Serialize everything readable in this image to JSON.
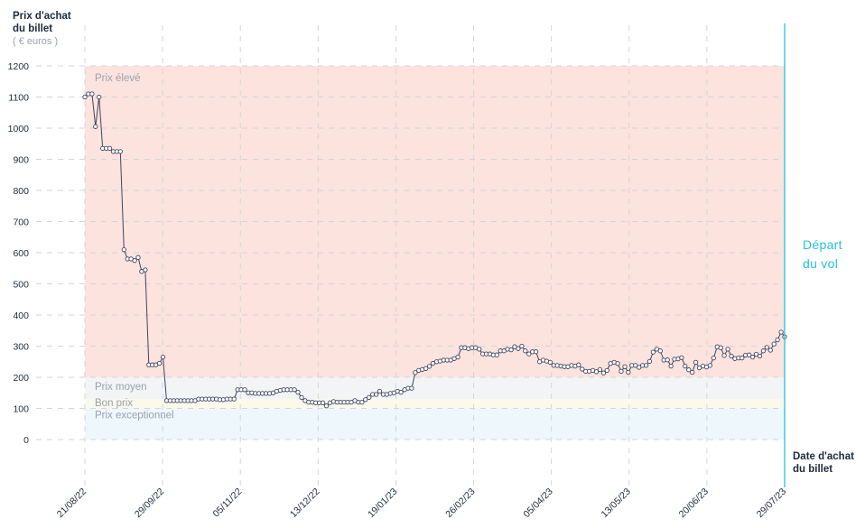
{
  "axis": {
    "y_title_line1": "Prix d'achat",
    "y_title_line2": "du billet",
    "y_unit": "( € euros )",
    "x_title_line1": "Date d'achat",
    "x_title_line2": "du billet"
  },
  "departure_label_line1": "Départ",
  "departure_label_line2": "du vol",
  "colors": {
    "line": "#3d4660",
    "high_zone": "#fde3dd",
    "mid_zone": "#f3f4f5",
    "good_zone": "#fbf8ec",
    "exceptional_zone": "#eef7fb",
    "departure_line": "#22c3de",
    "grid": "#d3d6da",
    "tick_text": "#1d2a3a",
    "zone_text": "#9aa2ad"
  },
  "chart_data": {
    "type": "line",
    "title": "",
    "xlabel": "Date d'achat du billet",
    "ylabel": "Prix d'achat du billet ( € euros )",
    "ylim": [
      0,
      1200
    ],
    "yticks": [
      0,
      100,
      200,
      300,
      400,
      500,
      600,
      700,
      800,
      900,
      1000,
      1100,
      1200
    ],
    "xlim": [
      "21/08/22",
      "29/07/23"
    ],
    "xticks": [
      "21/08/22",
      "29/09/22",
      "05/11/22",
      "13/12/22",
      "19/01/23",
      "26/02/23",
      "05/04/23",
      "13/05/23",
      "20/06/23",
      "29/07/23"
    ],
    "grid": true,
    "zones": [
      {
        "name": "Prix élevé",
        "from": 200,
        "to": 1200
      },
      {
        "name": "Prix moyen",
        "from": 130,
        "to": 200
      },
      {
        "name": "Bon prix",
        "from": 100,
        "to": 130
      },
      {
        "name": "Prix exceptionnel",
        "from": 0,
        "to": 100
      }
    ],
    "departure_marker": {
      "date": "29/07/23",
      "label": "Départ du vol"
    },
    "series": [
      {
        "day_start": "21/08/22",
        "values": [
          1100,
          1110,
          1110,
          1005,
          1100,
          935,
          935,
          935,
          925,
          925,
          925,
          610,
          580,
          580,
          575,
          585,
          540,
          545,
          240,
          240,
          240,
          245,
          265,
          125,
          125,
          125,
          125,
          125,
          125,
          125,
          125,
          125,
          130,
          130,
          130,
          130,
          130,
          130,
          128,
          128,
          130,
          130,
          130,
          160,
          160,
          160,
          150,
          150,
          148,
          148,
          148,
          148,
          148,
          150,
          155,
          158,
          160,
          160,
          160,
          160,
          152,
          135,
          125,
          120,
          120,
          118,
          118,
          118,
          108,
          118,
          122,
          120,
          120,
          120,
          120,
          120,
          125,
          120,
          120,
          128,
          135,
          145,
          145,
          155,
          145,
          145,
          148,
          150,
          155,
          152,
          160,
          165,
          165,
          215,
          222,
          225,
          228,
          235,
          245,
          250,
          252,
          255,
          255,
          255,
          260,
          265,
          295,
          295,
          292,
          295,
          295,
          290,
          275,
          275,
          275,
          272,
          272,
          285,
          285,
          290,
          288,
          298,
          292,
          300,
          285,
          275,
          282,
          282,
          250,
          255,
          252,
          248,
          238,
          238,
          236,
          234,
          234,
          238,
          236,
          240,
          226,
          219,
          219,
          222,
          218,
          225,
          214,
          222,
          244,
          248,
          244,
          219,
          234,
          216,
          238,
          238,
          232,
          238,
          238,
          251,
          281,
          290,
          285,
          255,
          256,
          236,
          258,
          259,
          263,
          236,
          224,
          216,
          248,
          230,
          236,
          233,
          238,
          262,
          298,
          295,
          270,
          290,
          268,
          260,
          262,
          262,
          271,
          272,
          265,
          274,
          268,
          285,
          296,
          287,
          307,
          320,
          345,
          330
        ]
      }
    ]
  }
}
